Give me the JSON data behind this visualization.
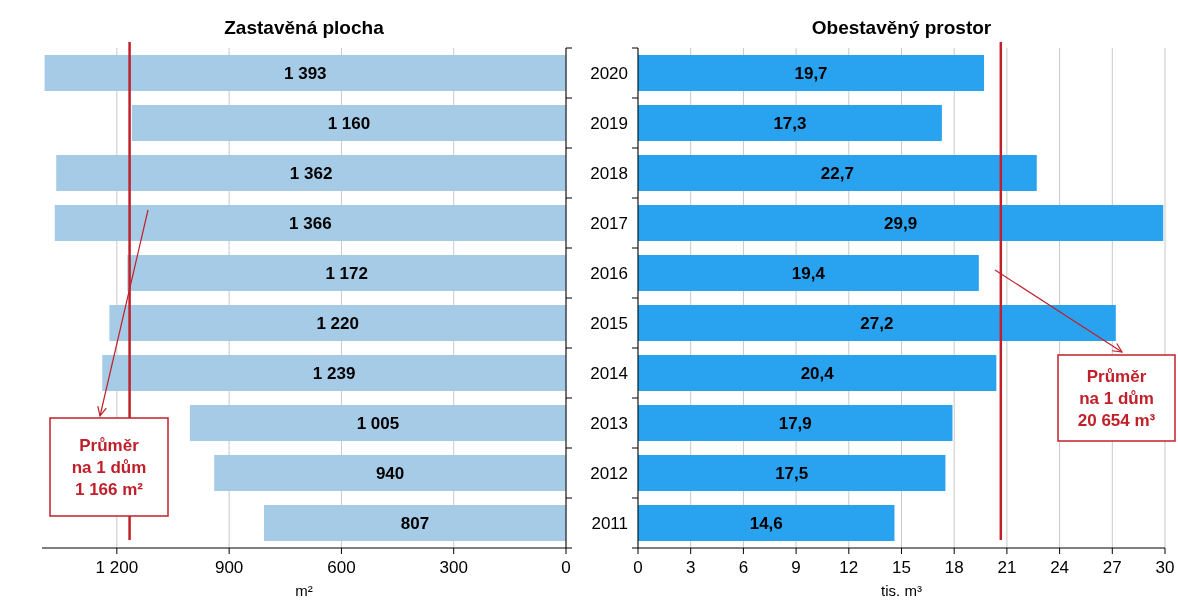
{
  "chart_data": [
    {
      "type": "bar",
      "orientation": "horizontal",
      "title": "Zastavěná plocha",
      "xlabel": "m²",
      "categories": [
        "2020",
        "2019",
        "2018",
        "2017",
        "2016",
        "2015",
        "2014",
        "2013",
        "2012",
        "2011"
      ],
      "values": [
        1393,
        1160,
        1362,
        1366,
        1172,
        1220,
        1239,
        1005,
        940,
        807
      ],
      "value_labels": [
        "1 393",
        "1 160",
        "1 362",
        "1 366",
        "1 172",
        "1 220",
        "1 239",
        "1 005",
        "940",
        "807"
      ],
      "color": "#a6cbe6",
      "xlim": [
        1400,
        0
      ],
      "xticks": [
        {
          "value": 1200,
          "label": "1 200"
        },
        900,
        600,
        300,
        0
      ],
      "grid": "x",
      "tick_labels": "x",
      "ref_lines": [
        {
          "axis": "x",
          "value": 1166,
          "label": "Průměr na 1 dům 1 166 m²",
          "color": "#c0202a"
        }
      ]
    },
    {
      "type": "bar",
      "orientation": "horizontal",
      "title": "Obestavěný prostor",
      "xlabel": "tis. m³",
      "categories": [
        "2020",
        "2019",
        "2018",
        "2017",
        "2016",
        "2015",
        "2014",
        "2013",
        "2012",
        "2011"
      ],
      "values": [
        19.7,
        17.3,
        22.7,
        29.9,
        19.4,
        27.2,
        20.4,
        17.9,
        17.5,
        14.6
      ],
      "value_labels": [
        "19,7",
        "17,3",
        "22,7",
        "29,9",
        "19,4",
        "27,2",
        "20,4",
        "17,9",
        "17,5",
        "14,6"
      ],
      "color": "#29a3f0",
      "xlim": [
        0,
        30
      ],
      "xticks": [
        0,
        3,
        6,
        9,
        12,
        15,
        18,
        21,
        24,
        27,
        30
      ],
      "grid": "x",
      "ref_lines": [
        {
          "axis": "x",
          "value": 20.654,
          "label": "Průměr na 1 dům 20 654 m³",
          "color": "#c0202a"
        }
      ]
    }
  ]
}
